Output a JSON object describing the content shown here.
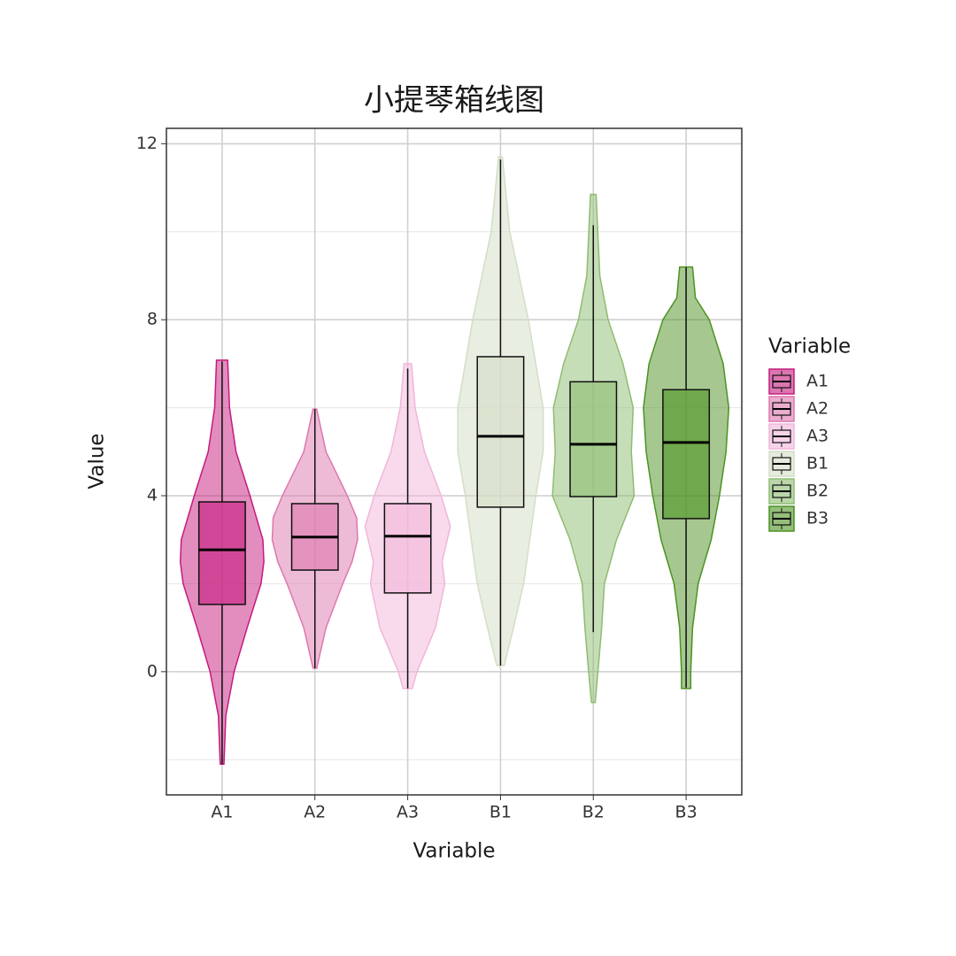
{
  "chart_data": {
    "type": "violin_box",
    "title": "小提琴箱线图",
    "x_label": "Variable",
    "y_label": "Value",
    "categories": [
      "A1",
      "A2",
      "A3",
      "B1",
      "B2",
      "B3"
    ],
    "ylim": [
      -2.8,
      12.35
    ],
    "yticks": [
      0,
      4,
      8,
      12
    ],
    "minor_yticks": [
      -2,
      2,
      6,
      10
    ],
    "grid": true,
    "legend_title": "Variable",
    "legend_position": "right",
    "series": [
      {
        "name": "A1",
        "color": "#c51b7d",
        "box": {
          "whisker_low": -2.1,
          "q1": 1.53,
          "median": 2.77,
          "q3": 3.86,
          "whisker_high": 7.05
        },
        "violin": {
          "y": [
            7.08,
            6,
            5,
            4,
            3,
            2.5,
            2,
            1,
            0,
            -1,
            -2.1
          ],
          "width": [
            0.06,
            0.08,
            0.15,
            0.3,
            0.44,
            0.45,
            0.42,
            0.27,
            0.13,
            0.04,
            0.02
          ]
        }
      },
      {
        "name": "A2",
        "color": "#de77ae",
        "box": {
          "whisker_low": 0.08,
          "q1": 2.31,
          "median": 3.06,
          "q3": 3.82,
          "whisker_high": 5.97
        },
        "violin": {
          "y": [
            5.97,
            5,
            4,
            3.5,
            3,
            2.5,
            2,
            1,
            0.08
          ],
          "width": [
            0.02,
            0.12,
            0.35,
            0.45,
            0.46,
            0.4,
            0.3,
            0.12,
            0.02
          ]
        }
      },
      {
        "name": "A3",
        "color": "#f1b6da",
        "box": {
          "whisker_low": -0.38,
          "q1": 1.79,
          "median": 3.08,
          "q3": 3.82,
          "whisker_high": 6.89
        },
        "violin": {
          "y": [
            7.0,
            6,
            5,
            4,
            3.3,
            2.5,
            2,
            1,
            0,
            -0.38
          ],
          "width": [
            0.04,
            0.08,
            0.18,
            0.36,
            0.46,
            0.37,
            0.4,
            0.3,
            0.1,
            0.05
          ]
        }
      },
      {
        "name": "B1",
        "color": "#d3dec6",
        "box": {
          "whisker_low": 0.14,
          "q1": 3.74,
          "median": 5.35,
          "q3": 7.16,
          "whisker_high": 11.64
        },
        "violin": {
          "y": [
            11.7,
            10,
            8,
            6,
            5,
            4,
            2,
            1,
            0.14
          ],
          "width": [
            0.02,
            0.1,
            0.3,
            0.46,
            0.46,
            0.38,
            0.25,
            0.14,
            0.04
          ]
        }
      },
      {
        "name": "B2",
        "color": "#8dbd72",
        "box": {
          "whisker_low": 0.9,
          "q1": 3.98,
          "median": 5.17,
          "q3": 6.59,
          "whisker_high": 10.15
        },
        "violin": {
          "y": [
            10.85,
            9,
            8,
            7,
            6,
            5,
            4,
            3,
            2,
            1,
            0,
            -0.7
          ],
          "width": [
            0.03,
            0.07,
            0.16,
            0.32,
            0.43,
            0.41,
            0.44,
            0.25,
            0.12,
            0.09,
            0.05,
            0.02
          ]
        }
      },
      {
        "name": "B3",
        "color": "#4d9221",
        "box": {
          "whisker_low": -0.36,
          "q1": 3.48,
          "median": 5.21,
          "q3": 6.41,
          "whisker_high": 9.19
        },
        "violin": {
          "y": [
            9.2,
            8.5,
            8,
            7,
            6,
            5,
            4,
            3,
            2,
            1,
            0,
            -0.38
          ],
          "width": [
            0.07,
            0.1,
            0.25,
            0.4,
            0.46,
            0.43,
            0.36,
            0.27,
            0.13,
            0.07,
            0.05,
            0.05
          ]
        }
      }
    ]
  }
}
